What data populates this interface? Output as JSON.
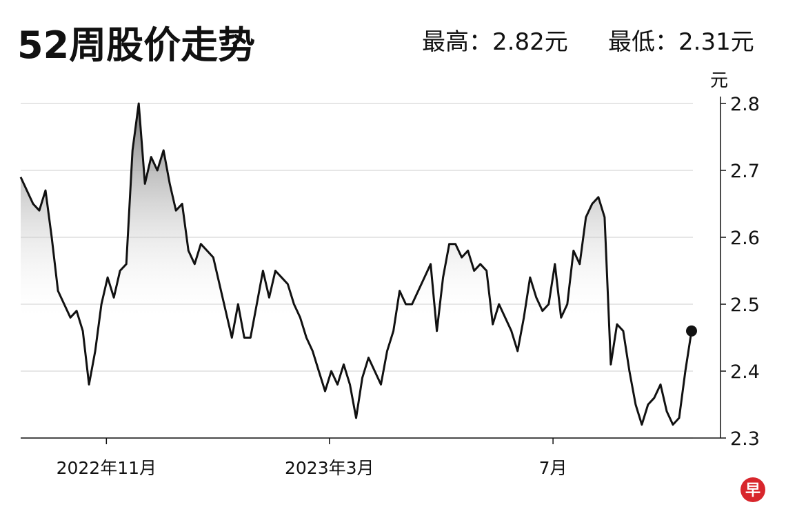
{
  "chart_data": {
    "type": "line",
    "title": "52周股价走势",
    "annotations": [
      "最高：2.82元",
      "最低：2.31元"
    ],
    "ylabel": "元",
    "logo": "早",
    "color": "#111111",
    "grid": true,
    "area_fill": true,
    "end_marker": true,
    "ylim": [
      2.3,
      2.8
    ],
    "yticks": [
      2.3,
      2.4,
      2.5,
      2.6,
      2.7,
      2.8
    ],
    "xlim": [
      0,
      108
    ],
    "xticks": [
      {
        "value": 13.8,
        "label": "2022年11月"
      },
      {
        "value": 49.7,
        "label": "2023年3月"
      },
      {
        "value": 85.7,
        "label": "7月"
      }
    ],
    "values": [
      2.69,
      2.67,
      2.65,
      2.64,
      2.67,
      2.6,
      2.52,
      2.5,
      2.48,
      2.49,
      2.46,
      2.38,
      2.43,
      2.5,
      2.54,
      2.51,
      2.55,
      2.56,
      2.73,
      2.8,
      2.68,
      2.72,
      2.7,
      2.73,
      2.68,
      2.64,
      2.65,
      2.58,
      2.56,
      2.59,
      2.58,
      2.57,
      2.53,
      2.49,
      2.45,
      2.5,
      2.45,
      2.45,
      2.5,
      2.55,
      2.51,
      2.55,
      2.54,
      2.53,
      2.5,
      2.48,
      2.45,
      2.43,
      2.4,
      2.37,
      2.4,
      2.38,
      2.41,
      2.38,
      2.33,
      2.39,
      2.42,
      2.4,
      2.38,
      2.43,
      2.46,
      2.52,
      2.5,
      2.5,
      2.52,
      2.54,
      2.56,
      2.46,
      2.54,
      2.59,
      2.59,
      2.57,
      2.58,
      2.55,
      2.56,
      2.55,
      2.47,
      2.5,
      2.48,
      2.46,
      2.43,
      2.48,
      2.54,
      2.51,
      2.49,
      2.5,
      2.56,
      2.48,
      2.5,
      2.58,
      2.56,
      2.63,
      2.65,
      2.66,
      2.63,
      2.41,
      2.47,
      2.46,
      2.4,
      2.35,
      2.32,
      2.35,
      2.36,
      2.38,
      2.34,
      2.32,
      2.33,
      2.4,
      2.46
    ]
  }
}
